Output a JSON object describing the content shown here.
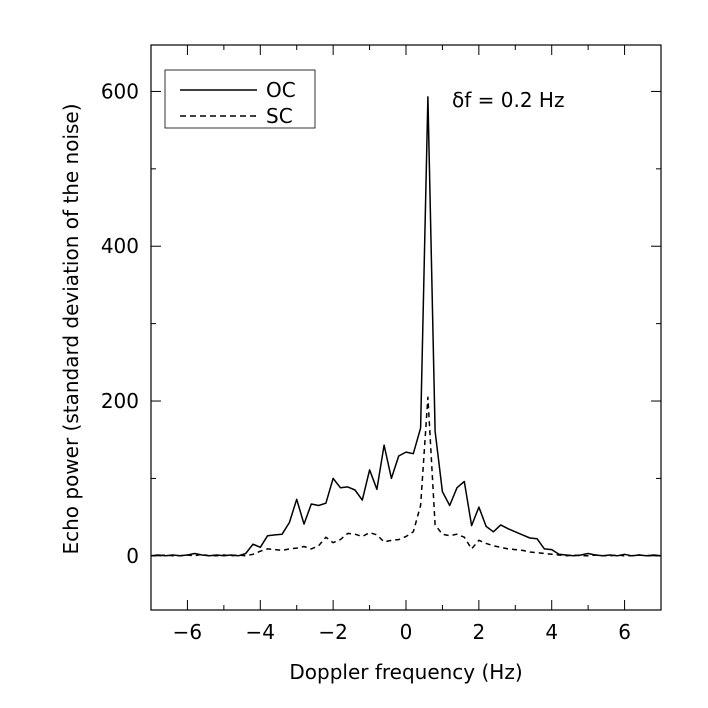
{
  "chart_data": {
    "type": "line",
    "title": "",
    "xlabel": "Doppler frequency (Hz)",
    "ylabel": "Echo power (standard deviation of the noise)",
    "xlim": [
      -7,
      7
    ],
    "ylim": [
      -70,
      660
    ],
    "xticks": [
      -6,
      -4,
      -2,
      0,
      2,
      4,
      6
    ],
    "yticks": [
      0,
      200,
      400,
      600
    ],
    "annotation": "δf = 0.2 Hz",
    "legend": {
      "position": "top-left",
      "entries": [
        "OC",
        "SC"
      ]
    },
    "series": [
      {
        "name": "OC",
        "style": "solid",
        "x": [
          -7.0,
          -6.8,
          -6.6,
          -6.4,
          -6.2,
          -6.0,
          -5.8,
          -5.6,
          -5.4,
          -5.2,
          -5.0,
          -4.8,
          -4.6,
          -4.4,
          -4.2,
          -4.0,
          -3.8,
          -3.6,
          -3.4,
          -3.2,
          -3.0,
          -2.8,
          -2.6,
          -2.4,
          -2.2,
          -2.0,
          -1.8,
          -1.6,
          -1.4,
          -1.2,
          -1.0,
          -0.8,
          -0.6,
          -0.4,
          -0.2,
          0.0,
          0.2,
          0.4,
          0.6,
          0.8,
          1.0,
          1.2,
          1.4,
          1.6,
          1.8,
          2.0,
          2.2,
          2.4,
          2.6,
          2.8,
          3.0,
          3.2,
          3.4,
          3.6,
          3.8,
          4.0,
          4.2,
          4.4,
          4.6,
          4.8,
          5.0,
          5.2,
          5.4,
          5.6,
          5.8,
          6.0,
          6.2,
          6.4,
          6.6,
          6.8,
          7.0
        ],
        "y": [
          0,
          1,
          0,
          1,
          0,
          1,
          3,
          1,
          0,
          1,
          0,
          1,
          0,
          3,
          15,
          11,
          26,
          27,
          28,
          43,
          73,
          41,
          67,
          65,
          68,
          100,
          88,
          89,
          85,
          72,
          111,
          86,
          143,
          100,
          129,
          134,
          132,
          165,
          593,
          161,
          83,
          65,
          88,
          96,
          39,
          63,
          38,
          31,
          40,
          35,
          31,
          27,
          23,
          22,
          9,
          8,
          2,
          1,
          0,
          1,
          3,
          1,
          0,
          1,
          0,
          2,
          0,
          1,
          0,
          1,
          0
        ]
      },
      {
        "name": "SC",
        "style": "dashed",
        "x": [
          -7.0,
          -6.8,
          -6.6,
          -6.4,
          -6.2,
          -6.0,
          -5.8,
          -5.6,
          -5.4,
          -5.2,
          -5.0,
          -4.8,
          -4.6,
          -4.4,
          -4.2,
          -4.0,
          -3.8,
          -3.6,
          -3.4,
          -3.2,
          -3.0,
          -2.8,
          -2.6,
          -2.4,
          -2.2,
          -2.0,
          -1.8,
          -1.6,
          -1.4,
          -1.2,
          -1.0,
          -0.8,
          -0.6,
          -0.4,
          -0.2,
          0.0,
          0.2,
          0.4,
          0.6,
          0.8,
          1.0,
          1.2,
          1.4,
          1.6,
          1.8,
          2.0,
          2.2,
          2.4,
          2.6,
          2.8,
          3.0,
          3.2,
          3.4,
          3.6,
          3.8,
          4.0,
          4.2,
          4.4,
          4.6,
          4.8,
          5.0,
          5.2,
          5.4,
          5.6,
          5.8,
          6.0,
          6.2,
          6.4,
          6.6,
          6.8,
          7.0
        ],
        "y": [
          0,
          0,
          1,
          0,
          0,
          1,
          0,
          2,
          0,
          0,
          1,
          0,
          1,
          0,
          2,
          6,
          9,
          8,
          7,
          9,
          10,
          12,
          9,
          13,
          24,
          17,
          21,
          29,
          28,
          25,
          30,
          27,
          18,
          20,
          21,
          25,
          31,
          65,
          205,
          40,
          28,
          26,
          28,
          24,
          9,
          20,
          16,
          13,
          11,
          9,
          8,
          7,
          5,
          4,
          3,
          2,
          1,
          0,
          1,
          0,
          0,
          1,
          0,
          0,
          1,
          0,
          0,
          1,
          0,
          0,
          0
        ]
      }
    ]
  }
}
